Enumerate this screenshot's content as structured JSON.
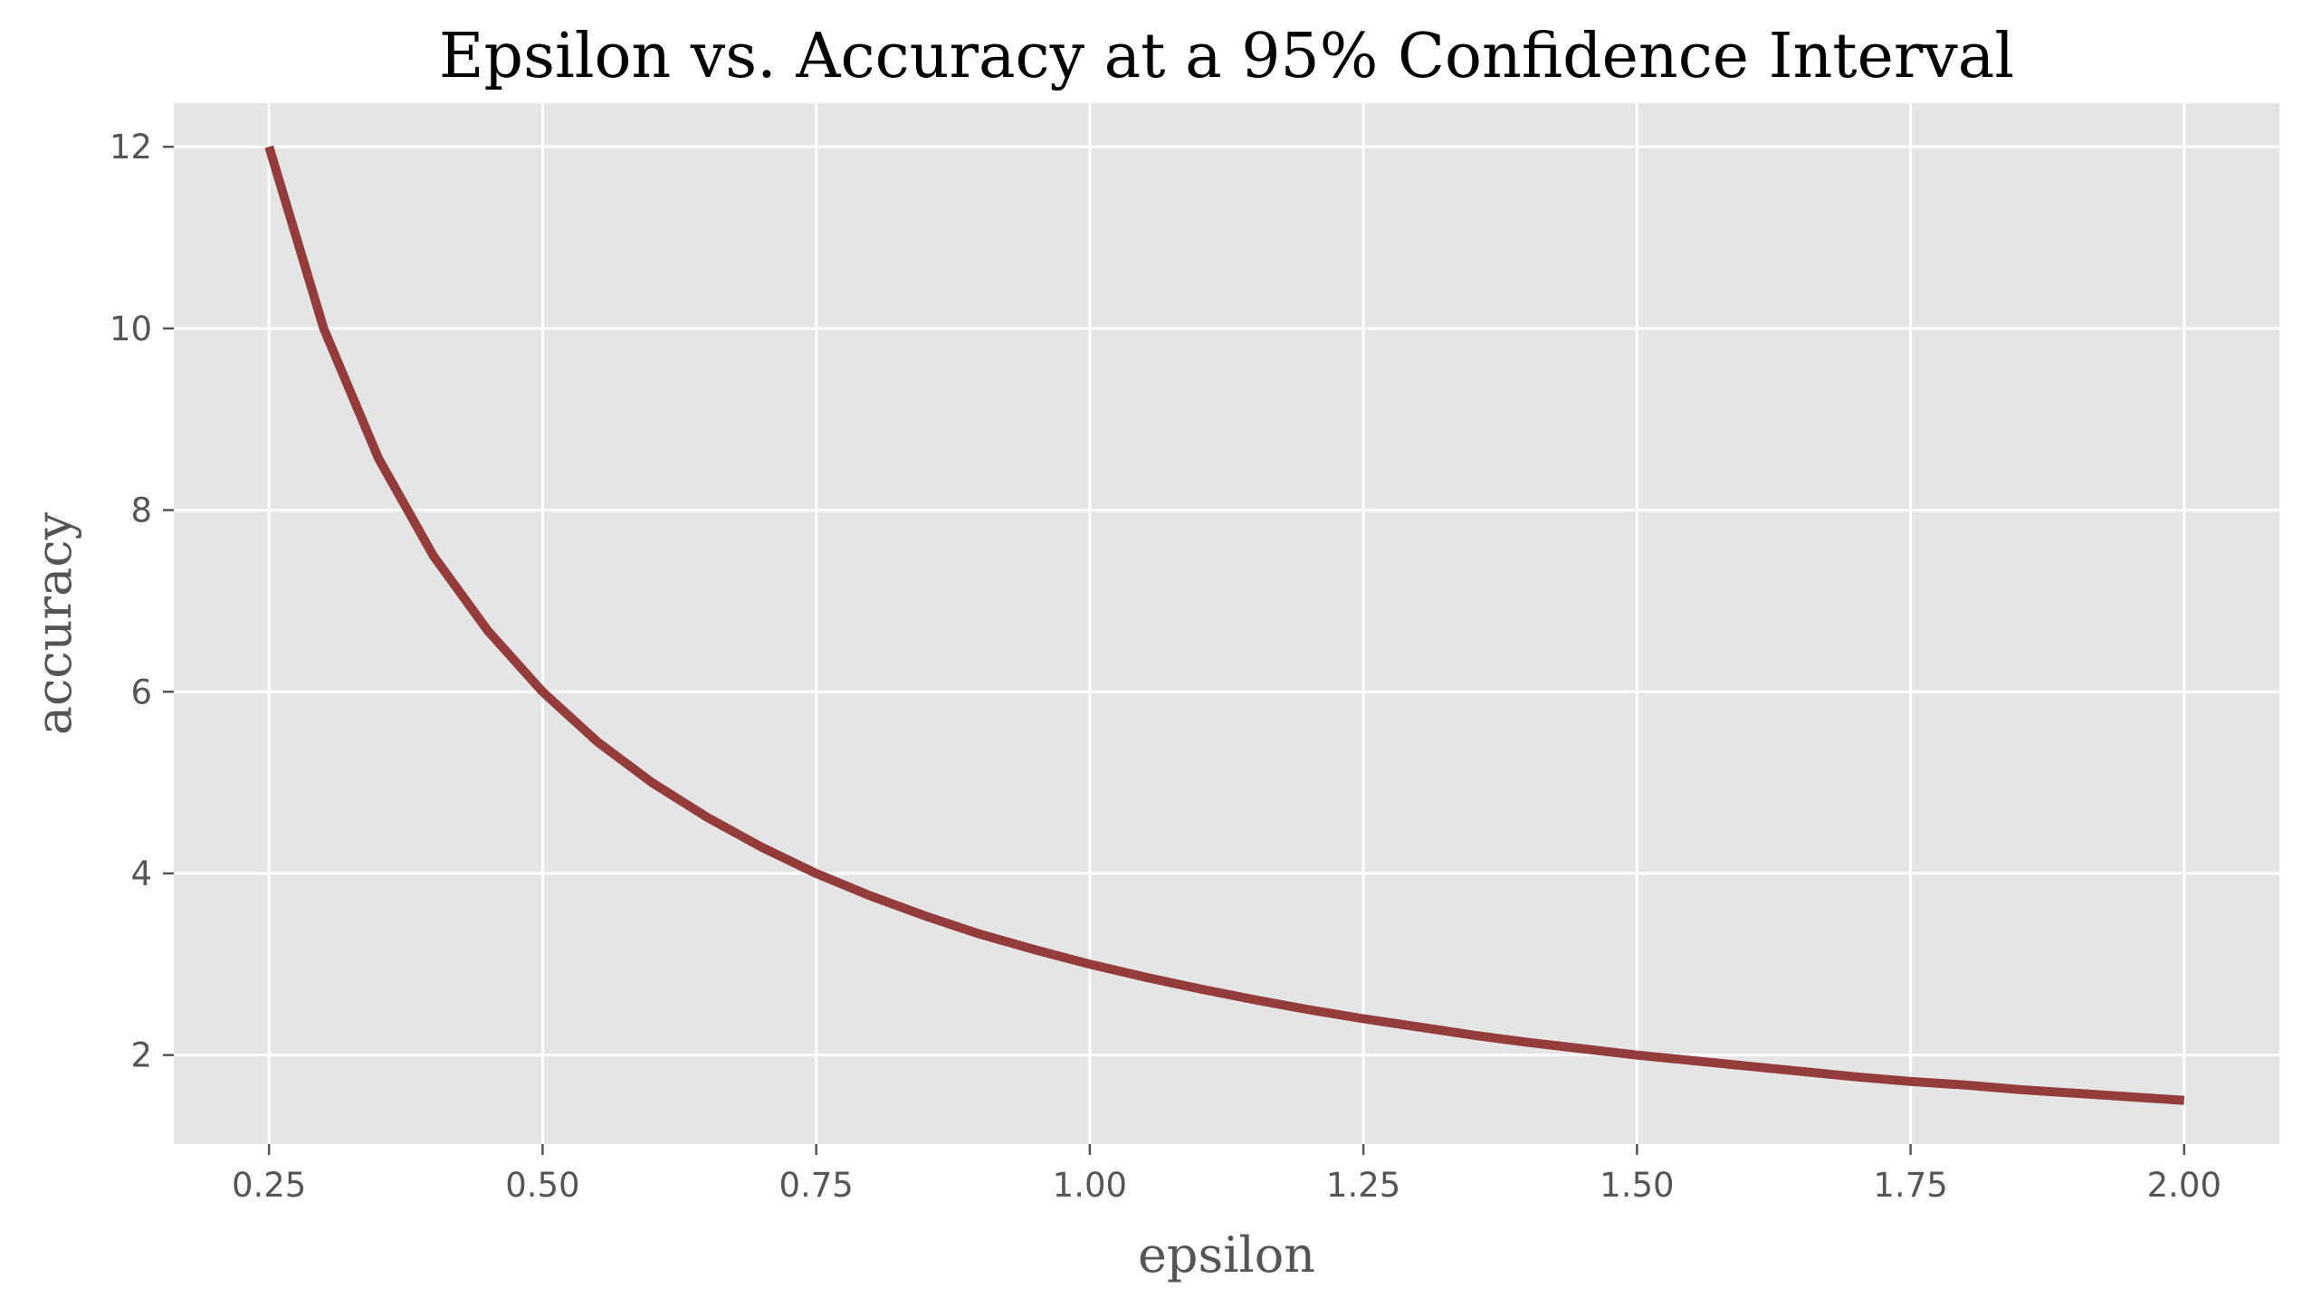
{
  "chart_data": {
    "type": "line",
    "title": "Epsilon vs. Accuracy at a 95% Confidence Interval",
    "xlabel": "epsilon",
    "ylabel": "accuracy",
    "xlim": [
      0.163,
      2.087
    ],
    "ylim": [
      1.02,
      12.48
    ],
    "x_ticks": [
      0.25,
      0.5,
      0.75,
      1.0,
      1.25,
      1.5,
      1.75,
      2.0
    ],
    "x_tick_labels": [
      "0.25",
      "0.50",
      "0.75",
      "1.00",
      "1.25",
      "1.50",
      "1.75",
      "2.00"
    ],
    "y_ticks": [
      2,
      4,
      6,
      8,
      10,
      12
    ],
    "y_tick_labels": [
      "2",
      "4",
      "6",
      "8",
      "10",
      "12"
    ],
    "grid": true,
    "legend": "none",
    "series": [
      {
        "color": "#943c3c",
        "x": [
          0.25,
          0.3,
          0.35,
          0.4,
          0.45,
          0.5,
          0.55,
          0.6,
          0.65,
          0.7,
          0.75,
          0.8,
          0.85,
          0.9,
          0.95,
          1.0,
          1.05,
          1.1,
          1.15,
          1.2,
          1.25,
          1.3,
          1.35,
          1.4,
          1.45,
          1.5,
          1.55,
          1.6,
          1.65,
          1.7,
          1.75,
          1.8,
          1.85,
          1.9,
          1.95,
          2.0
        ],
        "y": [
          12.0,
          10.0,
          8.57,
          7.5,
          6.67,
          6.0,
          5.45,
          5.0,
          4.62,
          4.29,
          4.0,
          3.75,
          3.53,
          3.33,
          3.16,
          3.0,
          2.86,
          2.73,
          2.61,
          2.5,
          2.4,
          2.31,
          2.22,
          2.14,
          2.07,
          2.0,
          1.94,
          1.88,
          1.82,
          1.76,
          1.71,
          1.67,
          1.62,
          1.58,
          1.54,
          1.5
        ]
      }
    ]
  },
  "style": {
    "plot_background": "#e5e5e5",
    "grid_color": "#ffffff",
    "line_color": "#943c3c",
    "text_color": "#555555"
  }
}
